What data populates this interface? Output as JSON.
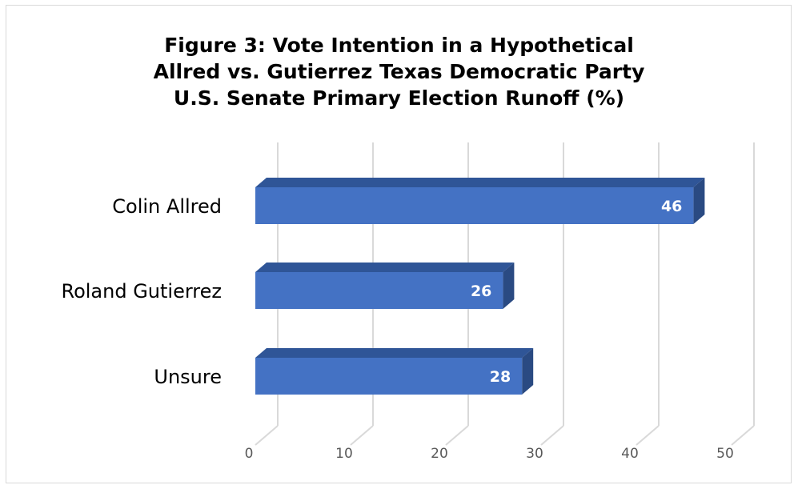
{
  "chart_data": {
    "type": "bar",
    "orientation": "horizontal",
    "title_lines": [
      "Figure 3: Vote Intention in a Hypothetical",
      "Allred vs. Gutierrez Texas Democratic Party",
      "U.S. Senate Primary Election Runoff (%)"
    ],
    "categories": [
      "Colin Allred",
      "Roland Gutierrez",
      "Unsure"
    ],
    "values": [
      46,
      26,
      28
    ],
    "data_labels": [
      "46",
      "26",
      "28"
    ],
    "xlim": [
      0,
      50
    ],
    "x_ticks": [
      "0",
      "10",
      "20",
      "30",
      "40",
      "50"
    ],
    "grid": true,
    "legend": "none",
    "style": "3d",
    "colors": {
      "bar_front": "#4472c4",
      "bar_top": "#2f5597",
      "bar_side": "#2a4a82",
      "gridline": "#d9d9d9",
      "tick_text": "#595959",
      "border": "#d9d9d9"
    }
  }
}
